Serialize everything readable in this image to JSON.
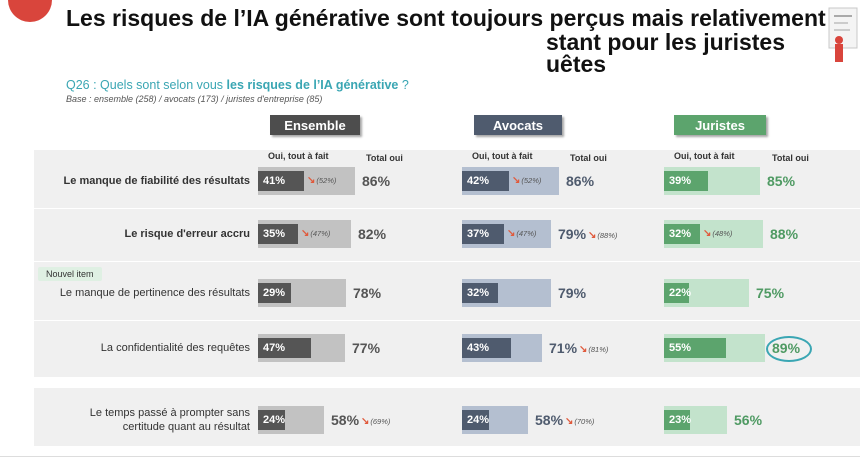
{
  "title": {
    "line1": "Les risques de l’IA générative sont toujours perçus mais relativement",
    "line2": "stant pour les juristes",
    "line3": "uêtes"
  },
  "question": {
    "prefix": "Q26 : Quels sont selon vous ",
    "highlight": "les risques de l’IA générative",
    "suffix": " ?"
  },
  "base": "Base : ensemble (258) / avocats (173) / juristes d'entreprise (85)",
  "badge_new": "Nouvel item",
  "columns": [
    {
      "name": "Ensemble",
      "head_color": "#4d4d4d",
      "bar_bg": "#c2c2c2",
      "bar_fg": "#555555",
      "total_color": "#555555",
      "sub_oui": "Oui, tout à fait",
      "sub_total": "Total oui"
    },
    {
      "name": "Avocats",
      "head_color": "#4f5b6e",
      "bar_bg": "#b4bfd0",
      "bar_fg": "#4f5b6e",
      "total_color": "#4f5b6e",
      "sub_oui": "Oui, tout à fait",
      "sub_total": "Total oui"
    },
    {
      "name": "Juristes",
      "head_color": "#5ca46d",
      "bar_bg": "#c3e3cc",
      "bar_fg": "#5ca46d",
      "total_color": "#4f9a63",
      "sub_oui": "Oui, tout à fait",
      "sub_total": "Total oui"
    }
  ],
  "chart_data": {
    "type": "bar",
    "categories": [
      "Le manque de fiabilité des résultats",
      "Le risque d'erreur accru",
      "Le manque de pertinence des résultats",
      "La confidentialité des requêtes",
      "Le temps passé à prompter sans certitude quant au résultat"
    ],
    "category_lines": [
      [
        "Le manque de fiabilité des résultats"
      ],
      [
        "Le risque d'erreur accru"
      ],
      [
        "Le manque de pertinence des résultats"
      ],
      [
        "La confidentialité des requêtes"
      ],
      [
        "Le temps passé à prompter sans",
        "certitude quant au résultat"
      ]
    ],
    "series": [
      {
        "name": "Ensemble",
        "oui_tout_a_fait": [
          41,
          35,
          29,
          47,
          24
        ],
        "total_oui": [
          86,
          82,
          78,
          77,
          58
        ],
        "oui_labels": [
          "41%",
          "35%",
          "29%",
          "47%",
          "24%"
        ],
        "total_labels": [
          "86%",
          "82%",
          "78%",
          "77%",
          "58%"
        ],
        "prev_oui": [
          "(52%)",
          "(47%)",
          null,
          null,
          null
        ],
        "prev_total": [
          null,
          null,
          null,
          null,
          "(69%)"
        ]
      },
      {
        "name": "Avocats",
        "oui_tout_a_fait": [
          42,
          37,
          32,
          43,
          24
        ],
        "total_oui": [
          86,
          79,
          79,
          71,
          58
        ],
        "oui_labels": [
          "42%",
          "37%",
          "32%",
          "43%",
          "24%"
        ],
        "total_labels": [
          "86%",
          "79%",
          "79%",
          "71%",
          "58%"
        ],
        "prev_oui": [
          "(52%)",
          "(47%)",
          null,
          null,
          null
        ],
        "prev_total": [
          null,
          "(88%)",
          null,
          "(81%)",
          "(70%)"
        ]
      },
      {
        "name": "Juristes",
        "oui_tout_a_fait": [
          39,
          32,
          22,
          55,
          23
        ],
        "total_oui": [
          85,
          88,
          75,
          89,
          56
        ],
        "oui_labels": [
          "39%",
          "32%",
          "22%",
          "55%",
          "23%"
        ],
        "total_labels": [
          "85%",
          "88%",
          "75%",
          "89%",
          "56%"
        ],
        "prev_oui": [
          null,
          "(48%)",
          null,
          null,
          null
        ],
        "prev_total": [
          null,
          null,
          null,
          null,
          null
        ]
      }
    ],
    "bold_categories": [
      true,
      true,
      false,
      false,
      false
    ],
    "new_item_index": 2,
    "highlighted_total": {
      "series": 2,
      "index": 3
    }
  }
}
